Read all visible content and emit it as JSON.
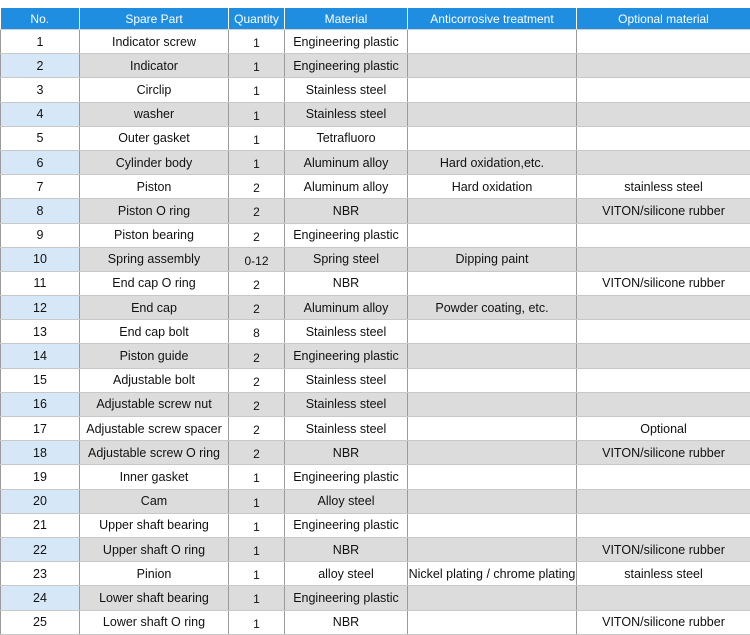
{
  "headers": [
    "No.",
    "Spare Part",
    "Quantity",
    "Material",
    "Anticorrosive treatment",
    "Optional material"
  ],
  "rows": [
    [
      "1",
      "Indicator screw",
      "1",
      "Engineering plastic",
      "",
      ""
    ],
    [
      "2",
      "Indicator",
      "1",
      "Engineering plastic",
      "",
      ""
    ],
    [
      "3",
      "Circlip",
      "1",
      "Stainless steel",
      "",
      ""
    ],
    [
      "4",
      "washer",
      "1",
      "Stainless steel",
      "",
      ""
    ],
    [
      "5",
      "Outer gasket",
      "1",
      "Tetrafluoro",
      "",
      ""
    ],
    [
      "6",
      "Cylinder body",
      "1",
      "Aluminum alloy",
      "Hard oxidation,etc.",
      ""
    ],
    [
      "7",
      "Piston",
      "2",
      "Aluminum alloy",
      "Hard oxidation",
      "stainless steel"
    ],
    [
      "8",
      "Piston O ring",
      "2",
      "NBR",
      "",
      "VITON/silicone rubber"
    ],
    [
      "9",
      "Piston bearing",
      "2",
      "Engineering plastic",
      "",
      ""
    ],
    [
      "10",
      "Spring assembly",
      "0-12",
      "Spring steel",
      "Dipping paint",
      ""
    ],
    [
      "11",
      "End cap O ring",
      "2",
      "NBR",
      "",
      "VITON/silicone rubber"
    ],
    [
      "12",
      "End cap",
      "2",
      "Aluminum alloy",
      "Powder coating, etc.",
      ""
    ],
    [
      "13",
      "End cap bolt",
      "8",
      "Stainless steel",
      "",
      ""
    ],
    [
      "14",
      "Piston guide",
      "2",
      "Engineering plastic",
      "",
      ""
    ],
    [
      "15",
      "Adjustable bolt",
      "2",
      "Stainless steel",
      "",
      ""
    ],
    [
      "16",
      "Adjustable screw nut",
      "2",
      "Stainless steel",
      "",
      ""
    ],
    [
      "17",
      "Adjustable screw spacer",
      "2",
      "Stainless steel",
      "",
      "Optional"
    ],
    [
      "18",
      "Adjustable screw O ring",
      "2",
      "NBR",
      "",
      "VITON/silicone rubber"
    ],
    [
      "19",
      "Inner gasket",
      "1",
      "Engineering plastic",
      "",
      ""
    ],
    [
      "20",
      "Cam",
      "1",
      "Alloy steel",
      "",
      ""
    ],
    [
      "21",
      "Upper shaft bearing",
      "1",
      "Engineering plastic",
      "",
      ""
    ],
    [
      "22",
      "Upper shaft O ring",
      "1",
      "NBR",
      "",
      "VITON/silicone rubber"
    ],
    [
      "23",
      "Pinion",
      "1",
      "alloy steel",
      "Nickel plating / chrome plating",
      "stainless steel"
    ],
    [
      "24",
      "Lower shaft bearing",
      "1",
      "Engineering plastic",
      "",
      ""
    ],
    [
      "25",
      "Lower shaft O ring",
      "1",
      "NBR",
      "",
      "VITON/silicone rubber"
    ]
  ],
  "colors": {
    "header_bg": "#1f8ee0",
    "header_text": "#ffffff",
    "stripe_gray": "#dcdcdc",
    "stripe_blue": "#d6e8f8"
  }
}
